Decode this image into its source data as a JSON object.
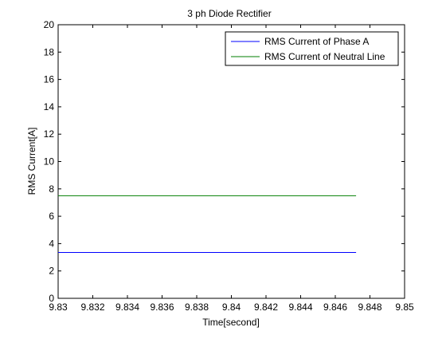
{
  "chart_data": {
    "type": "line",
    "title": "3 ph Diode Rectifier",
    "xlabel": "Time[second]",
    "ylabel": "RMS Current[A]",
    "xlim": [
      9.83,
      9.85
    ],
    "ylim": [
      0,
      20
    ],
    "xticks": [
      9.83,
      9.832,
      9.834,
      9.836,
      9.838,
      9.84,
      9.842,
      9.844,
      9.846,
      9.848,
      9.85
    ],
    "xtick_labels": [
      "9.83",
      "9.832",
      "9.834",
      "9.836",
      "9.838",
      "9.84",
      "9.842",
      "9.844",
      "9.846",
      "9.848",
      "9.85"
    ],
    "yticks": [
      0,
      2,
      4,
      6,
      8,
      10,
      12,
      14,
      16,
      18,
      20
    ],
    "ytick_labels": [
      "0",
      "2",
      "4",
      "6",
      "8",
      "10",
      "12",
      "14",
      "16",
      "18",
      "20"
    ],
    "grid": false,
    "legend_position": "top-right",
    "series": [
      {
        "name": "RMS Current of Phase A",
        "color": "#0000ff",
        "x": [
          9.83,
          9.8472
        ],
        "y": [
          3.35,
          3.35
        ]
      },
      {
        "name": "RMS Current of Neutral Line",
        "color": "#007f00",
        "x": [
          9.83,
          9.8472
        ],
        "y": [
          7.5,
          7.5
        ]
      }
    ]
  }
}
